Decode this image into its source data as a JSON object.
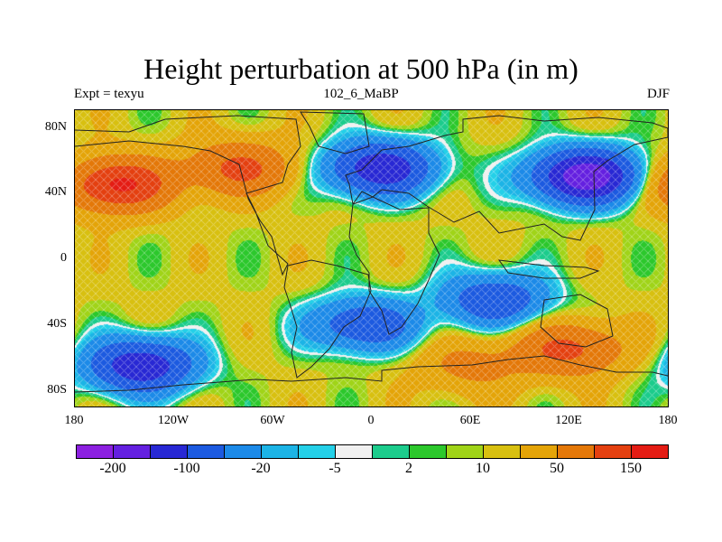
{
  "title": "Height perturbation at 500 hPa (in m)",
  "subtitle_left": "Expt = texyu",
  "subtitle_center": "102_6_MaBP",
  "subtitle_right": "DJF",
  "y_ticks": [
    "80N",
    "40N",
    "0",
    "40S",
    "80S"
  ],
  "x_ticks": [
    "180",
    "120W",
    "60W",
    "0",
    "60E",
    "120E",
    "180"
  ],
  "colorbar": {
    "colors": [
      "#8c20e0",
      "#6420e0",
      "#2828d4",
      "#1c5ae0",
      "#1c8ae8",
      "#1cb4e6",
      "#24d0e8",
      "#f0f0f0",
      "#1ccc8c",
      "#2cc82c",
      "#a0d418",
      "#d8c010",
      "#e4a408",
      "#e47808",
      "#e44010",
      "#e41c14"
    ],
    "labels": [
      "-200",
      "-100",
      "-20",
      "-5",
      "2",
      "10",
      "50",
      "150"
    ]
  },
  "chart_data": {
    "type": "heatmap",
    "title": "Height perturbation at 500 hPa (in m)",
    "x_range": [
      -180,
      180
    ],
    "y_range": [
      -90,
      90
    ],
    "levels": [
      -200,
      -150,
      -100,
      -50,
      -20,
      -10,
      -5,
      -2,
      2,
      5,
      10,
      20,
      50,
      100,
      150
    ],
    "features": [
      {
        "lon": -155,
        "lat": 45,
        "value": 150
      },
      {
        "lon": -80,
        "lat": 55,
        "value": 100
      },
      {
        "lon": 5,
        "lat": 55,
        "value": -150
      },
      {
        "lon": 130,
        "lat": 50,
        "value": -200
      },
      {
        "lon": -140,
        "lat": -65,
        "value": -150
      },
      {
        "lon": 60,
        "lat": -65,
        "value": 50
      },
      {
        "lon": 120,
        "lat": -55,
        "value": 100
      },
      {
        "lon": 75,
        "lat": -25,
        "value": -100
      },
      {
        "lon": -5,
        "lat": -40,
        "value": -100
      }
    ],
    "grid": false
  }
}
